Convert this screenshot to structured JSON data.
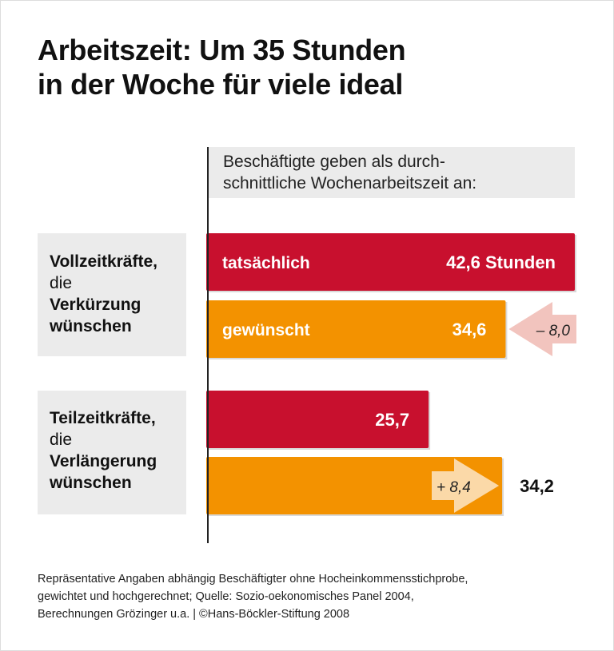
{
  "chart_data": {
    "type": "bar",
    "orientation": "horizontal",
    "title": "Arbeitszeit: Um 35 Stunden in der Woche für viele ideal",
    "title_lines": [
      "Arbeitszeit: Um 35 Stunden",
      "in der Woche für viele ideal"
    ],
    "subtitle_lines": [
      "Beschäftigte geben als durch-",
      "schnittliche Wochenarbeitszeit an:"
    ],
    "unit": "Stunden",
    "groups": [
      {
        "label_lines": [
          {
            "text": "Vollzeitkräfte,",
            "bold": true
          },
          {
            "text": "die",
            "bold": false
          },
          {
            "text": "Verkürzung",
            "bold": true
          },
          {
            "text": "wünschen",
            "bold": true
          }
        ],
        "bars": [
          {
            "label": "tatsächlich",
            "value": 42.6,
            "value_label": "42,6 Stunden",
            "color": "#c8102e"
          },
          {
            "label": "gewünscht",
            "value": 34.6,
            "value_label": "34,6",
            "color": "#f39200"
          }
        ],
        "difference": {
          "value": -8.0,
          "label": "– 8,0",
          "color": "#f2c4be"
        }
      },
      {
        "label_lines": [
          {
            "text": "Teilzeitkräfte,",
            "bold": true
          },
          {
            "text": "die",
            "bold": false
          },
          {
            "text": "Verlängerung",
            "bold": true
          },
          {
            "text": "wünschen",
            "bold": true
          }
        ],
        "bars": [
          {
            "label": "",
            "value": 25.7,
            "value_label": "25,7",
            "color": "#c8102e"
          },
          {
            "label": "",
            "value": 34.2,
            "value_label": "34,2",
            "color": "#f39200"
          }
        ],
        "difference": {
          "value": 8.4,
          "label": "+ 8,4",
          "color": "#fbd9a8"
        }
      }
    ],
    "xlim": [
      0,
      42.6
    ],
    "grid": false
  },
  "footer_lines": [
    "Repräsentative Angaben abhängig Beschäftigter ohne Hocheinkommensstichprobe,",
    "gewichtet und hochgerechnet; Quelle: Sozio-oekonomisches Panel 2004,",
    "Berechnungen Grözinger u.a. | ©Hans-Böckler-Stiftung 2008"
  ]
}
